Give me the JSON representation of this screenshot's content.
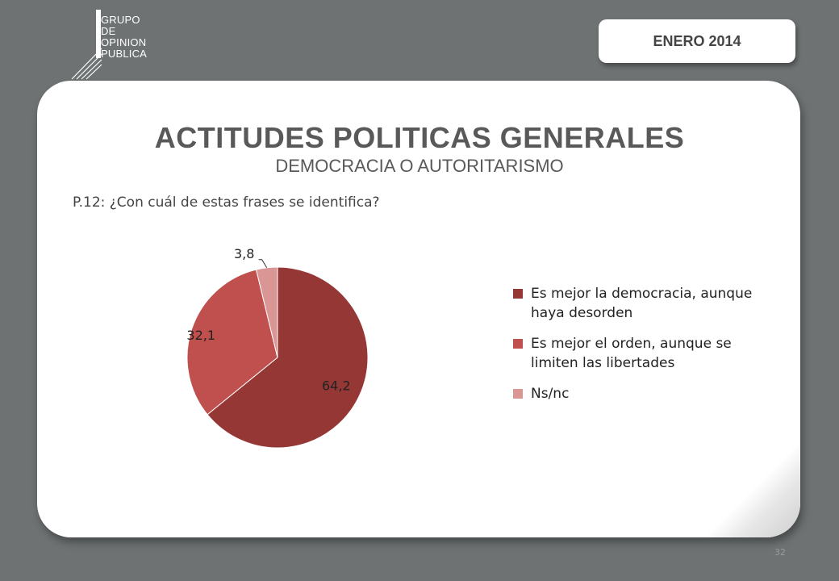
{
  "logo": {
    "lines": [
      "GRUPO",
      "DE",
      "OPINION",
      "PUBLICA"
    ]
  },
  "date": "ENERO 2014",
  "title": "ACTITUDES POLITICAS GENERALES",
  "subtitle": "DEMOCRACIA O AUTORITARISMO",
  "question": "P.12: ¿Con cuál de estas frases se identifica?",
  "page_number": "32",
  "chart_data": {
    "type": "pie",
    "categories": [
      "Es mejor la democracia, aunque haya desorden",
      "Es mejor el orden, aunque se limiten las libertades",
      "Ns/nc"
    ],
    "values": [
      64.2,
      32.1,
      3.8
    ],
    "data_labels": [
      "64,2",
      "32,1",
      "3,8"
    ],
    "colors": [
      "#953735",
      "#c0504d",
      "#d99694"
    ],
    "legend_position": "right",
    "title": "",
    "xlabel": "",
    "ylabel": ""
  }
}
